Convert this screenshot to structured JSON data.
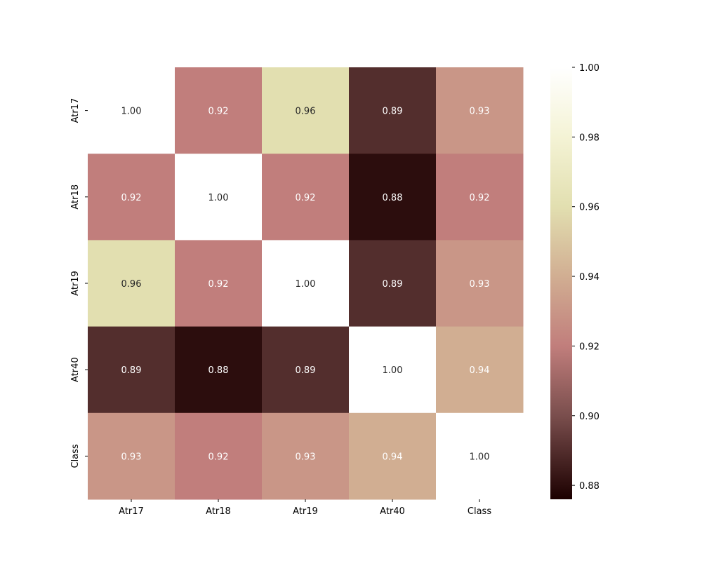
{
  "chart_data": {
    "type": "heatmap",
    "title": "",
    "xlabel": "",
    "ylabel": "",
    "x_labels": [
      "Atr17",
      "Atr18",
      "Atr19",
      "Atr40",
      "Class"
    ],
    "y_labels": [
      "Atr17",
      "Atr18",
      "Atr19",
      "Atr40",
      "Class"
    ],
    "values": [
      [
        1.0,
        0.92,
        0.96,
        0.89,
        0.93
      ],
      [
        0.92,
        1.0,
        0.92,
        0.88,
        0.92
      ],
      [
        0.96,
        0.92,
        1.0,
        0.89,
        0.93
      ],
      [
        0.89,
        0.88,
        0.89,
        1.0,
        0.94
      ],
      [
        0.93,
        0.92,
        0.93,
        0.94,
        1.0
      ]
    ],
    "value_format": "2 decimals",
    "colorbar": {
      "range": [
        0.876,
        1.0
      ],
      "ticks": [
        "0.88",
        "0.90",
        "0.92",
        "0.94",
        "0.96",
        "0.98",
        "1.00"
      ],
      "placement": "right",
      "colormap_stops": [
        {
          "value": 0.876,
          "color": "#1c0000"
        },
        {
          "value": 0.9,
          "color": "#7a4e4d"
        },
        {
          "value": 0.92,
          "color": "#c17e7c"
        },
        {
          "value": 0.94,
          "color": "#d1ae92"
        },
        {
          "value": 0.96,
          "color": "#e2dfb0"
        },
        {
          "value": 0.98,
          "color": "#f4f3d5"
        },
        {
          "value": 1.0,
          "color": "#ffffff"
        }
      ]
    },
    "grid": false
  }
}
